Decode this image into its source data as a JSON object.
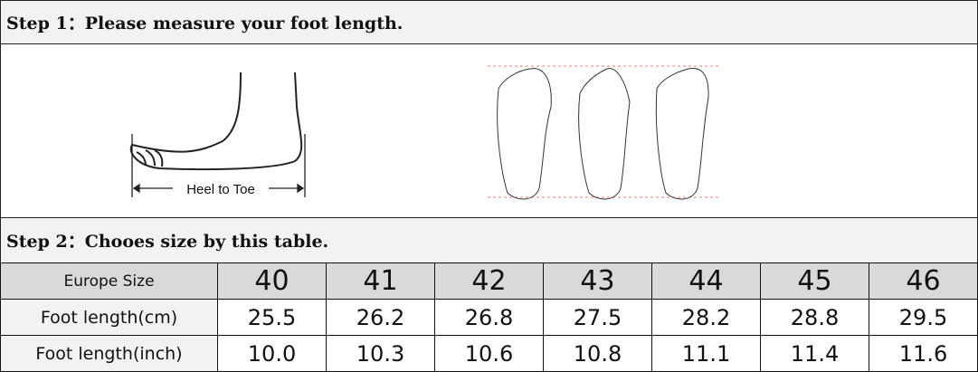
{
  "step1": {
    "title": "Step 1：Please measure your foot length.",
    "diagram_label": "Heel to Toe"
  },
  "step2": {
    "title": "Step 2：Chooes size by this table."
  },
  "table": {
    "rows": [
      {
        "label": "Europe Size",
        "values": [
          "40",
          "41",
          "42",
          "43",
          "44",
          "45",
          "46"
        ]
      },
      {
        "label": "Foot length(cm)",
        "values": [
          "25.5",
          "26.2",
          "26.8",
          "27.5",
          "28.2",
          "28.8",
          "29.5"
        ]
      },
      {
        "label": "Foot length(inch)",
        "values": [
          "10.0",
          "10.3",
          "10.6",
          "10.8",
          "11.1",
          "11.4",
          "11.6"
        ]
      }
    ]
  }
}
